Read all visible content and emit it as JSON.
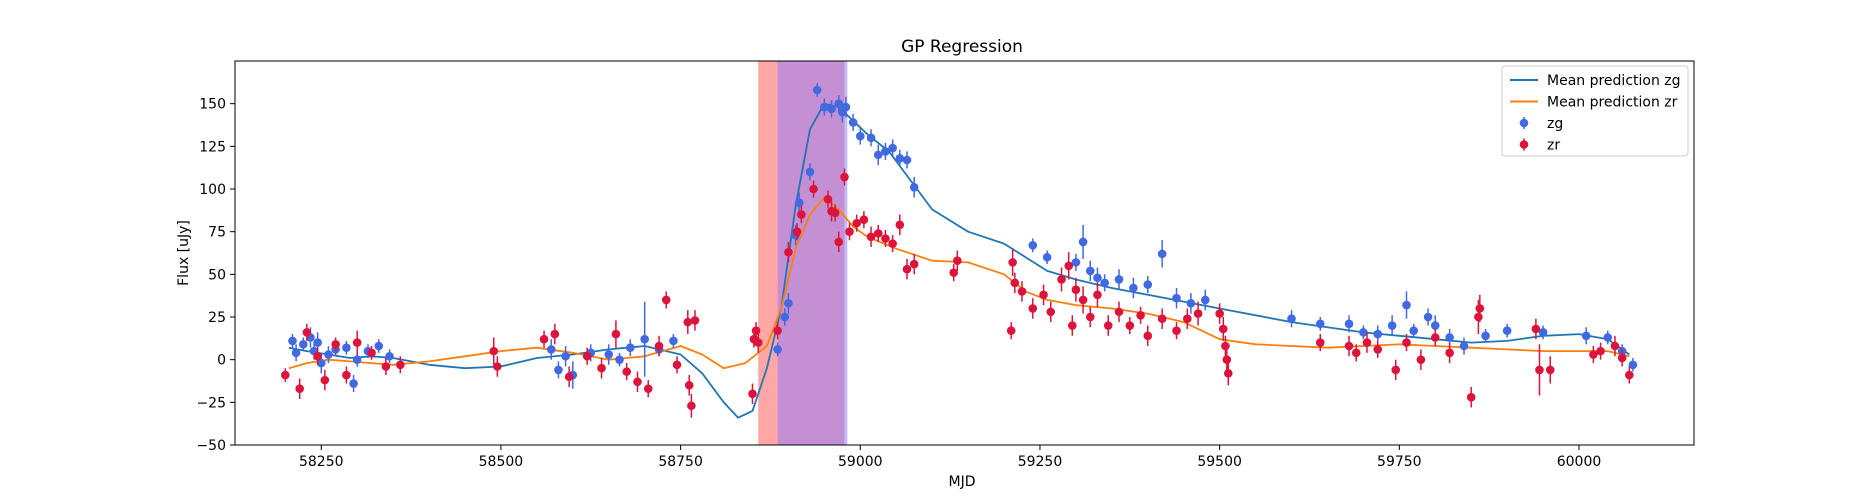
{
  "chart_data": {
    "type": "scatter",
    "title": "GP Regression",
    "xlabel": "MJD",
    "ylabel": "Flux [uJy]",
    "xlim": [
      58130,
      60160
    ],
    "ylim": [
      -50,
      175
    ],
    "xticks": [
      58250,
      58500,
      58750,
      59000,
      59250,
      59500,
      59750,
      60000
    ],
    "yticks": [
      -50,
      -25,
      0,
      25,
      50,
      75,
      100,
      125,
      150
    ],
    "grid": false,
    "legend_position": "top-right",
    "legend": [
      {
        "label": "Mean prediction zg",
        "kind": "line",
        "color": "#1f77b4"
      },
      {
        "label": "Mean prediction zr",
        "kind": "line",
        "color": "#ff7f0e"
      },
      {
        "label": "zg",
        "kind": "errorbar",
        "color": "#4169e1"
      },
      {
        "label": "zr",
        "kind": "errorbar",
        "color": "#dc143c"
      }
    ],
    "shaded_regions": [
      {
        "x0": 58858,
        "x1": 58978,
        "color": "#ff8080",
        "opacity": 0.7
      },
      {
        "x0": 58885,
        "x1": 58982,
        "color": "#8a78ff",
        "opacity": 0.5
      }
    ],
    "series": [
      {
        "name": "Mean prediction zg",
        "kind": "line",
        "color": "#1f77b4",
        "x": [
          58205,
          58230,
          58260,
          58290,
          58320,
          58350,
          58400,
          58450,
          58500,
          58550,
          58600,
          58650,
          58700,
          58750,
          58780,
          58810,
          58830,
          58850,
          58870,
          58890,
          58910,
          58930,
          58950,
          58970,
          58990,
          59010,
          59040,
          59070,
          59100,
          59150,
          59200,
          59230,
          59260,
          59300,
          59350,
          59400,
          59450,
          59500,
          59600,
          59700,
          59800,
          59850,
          59900,
          59950,
          60000,
          60040,
          60070
        ],
        "y": [
          7,
          5,
          3,
          1,
          2,
          1,
          -3,
          -5,
          -4,
          1,
          3,
          6,
          8,
          3,
          -8,
          -25,
          -34,
          -30,
          -5,
          30,
          90,
          135,
          150,
          148,
          140,
          132,
          122,
          105,
          88,
          75,
          68,
          60,
          52,
          47,
          42,
          38,
          34,
          30,
          22,
          16,
          12,
          10,
          11,
          14,
          15,
          12,
          3
        ]
      },
      {
        "name": "Mean prediction zr",
        "kind": "line",
        "color": "#ff7f0e",
        "x": [
          58205,
          58230,
          58260,
          58290,
          58320,
          58350,
          58400,
          58450,
          58500,
          58550,
          58600,
          58650,
          58700,
          58750,
          58780,
          58810,
          58840,
          58870,
          58890,
          58910,
          58930,
          58950,
          58970,
          58990,
          59010,
          59050,
          59100,
          59150,
          59200,
          59230,
          59260,
          59300,
          59350,
          59400,
          59450,
          59500,
          59550,
          59600,
          59650,
          59700,
          59750,
          59800,
          59850,
          59900,
          59950,
          60000,
          60040,
          60070
        ],
        "y": [
          -5,
          -2,
          0,
          -1,
          -2,
          -3,
          -1,
          2,
          5,
          7,
          4,
          0,
          2,
          8,
          3,
          -5,
          -2,
          8,
          30,
          65,
          85,
          95,
          88,
          78,
          72,
          65,
          58,
          57,
          50,
          40,
          35,
          32,
          30,
          27,
          22,
          12,
          9,
          8,
          7,
          8,
          9,
          8,
          7,
          6,
          5,
          5,
          5,
          2
        ]
      },
      {
        "name": "zg",
        "kind": "errorbar",
        "color": "#4169e1",
        "points": [
          [
            58210,
            11,
            4
          ],
          [
            58215,
            4,
            5
          ],
          [
            58225,
            9,
            4
          ],
          [
            58235,
            13,
            6
          ],
          [
            58240,
            5,
            5
          ],
          [
            58245,
            10,
            6
          ],
          [
            58250,
            -2,
            6
          ],
          [
            58260,
            3,
            5
          ],
          [
            58270,
            6,
            4
          ],
          [
            58285,
            7,
            4
          ],
          [
            58295,
            -14,
            5
          ],
          [
            58300,
            0,
            4
          ],
          [
            58315,
            5,
            4
          ],
          [
            58330,
            8,
            4
          ],
          [
            58345,
            2,
            4
          ],
          [
            58570,
            6,
            6
          ],
          [
            58580,
            -6,
            5
          ],
          [
            58590,
            2,
            6
          ],
          [
            58600,
            -9,
            8
          ],
          [
            58625,
            4,
            5
          ],
          [
            58650,
            3,
            6
          ],
          [
            58665,
            0,
            4
          ],
          [
            58680,
            7,
            5
          ],
          [
            58700,
            12,
            22
          ],
          [
            58720,
            6,
            4
          ],
          [
            58740,
            11,
            4
          ],
          [
            58885,
            6,
            4
          ],
          [
            58895,
            25,
            5
          ],
          [
            58900,
            33,
            6
          ],
          [
            58910,
            73,
            6
          ],
          [
            58915,
            92,
            6
          ],
          [
            58930,
            110,
            5
          ],
          [
            58940,
            158,
            4
          ],
          [
            58950,
            148,
            5
          ],
          [
            58960,
            147,
            5
          ],
          [
            58970,
            150,
            5
          ],
          [
            58975,
            145,
            6
          ],
          [
            58980,
            148,
            6
          ],
          [
            58990,
            139,
            5
          ],
          [
            59000,
            131,
            5
          ],
          [
            59015,
            130,
            5
          ],
          [
            59025,
            120,
            6
          ],
          [
            59035,
            122,
            5
          ],
          [
            59045,
            124,
            5
          ],
          [
            59055,
            118,
            5
          ],
          [
            59065,
            117,
            5
          ],
          [
            59075,
            101,
            6
          ],
          [
            59240,
            67,
            4
          ],
          [
            59260,
            60,
            4
          ],
          [
            59300,
            57,
            5
          ],
          [
            59310,
            69,
            10
          ],
          [
            59320,
            52,
            6
          ],
          [
            59330,
            48,
            6
          ],
          [
            59340,
            45,
            5
          ],
          [
            59360,
            47,
            6
          ],
          [
            59380,
            42,
            6
          ],
          [
            59400,
            44,
            5
          ],
          [
            59420,
            62,
            8
          ],
          [
            59440,
            36,
            6
          ],
          [
            59460,
            33,
            6
          ],
          [
            59480,
            35,
            6
          ],
          [
            59600,
            24,
            5
          ],
          [
            59640,
            21,
            4
          ],
          [
            59680,
            21,
            5
          ],
          [
            59700,
            16,
            4
          ],
          [
            59720,
            15,
            5
          ],
          [
            59740,
            20,
            6
          ],
          [
            59760,
            32,
            8
          ],
          [
            59770,
            17,
            4
          ],
          [
            59790,
            25,
            5
          ],
          [
            59800,
            20,
            6
          ],
          [
            59820,
            13,
            5
          ],
          [
            59840,
            8,
            5
          ],
          [
            59870,
            14,
            4
          ],
          [
            59900,
            17,
            4
          ],
          [
            59950,
            16,
            4
          ],
          [
            60010,
            14,
            5
          ],
          [
            60040,
            13,
            4
          ],
          [
            60060,
            5,
            4
          ],
          [
            60075,
            -3,
            4
          ]
        ]
      },
      {
        "name": "zr",
        "kind": "errorbar",
        "color": "#dc143c",
        "points": [
          [
            58200,
            -9,
            4
          ],
          [
            58220,
            -17,
            6
          ],
          [
            58230,
            16,
            5
          ],
          [
            58245,
            2,
            5
          ],
          [
            58255,
            -12,
            6
          ],
          [
            58270,
            9,
            4
          ],
          [
            58285,
            -9,
            5
          ],
          [
            58300,
            10,
            7
          ],
          [
            58320,
            4,
            4
          ],
          [
            58340,
            -4,
            5
          ],
          [
            58360,
            -3,
            5
          ],
          [
            58490,
            5,
            8
          ],
          [
            58495,
            -4,
            6
          ],
          [
            58560,
            12,
            5
          ],
          [
            58575,
            15,
            6
          ],
          [
            58595,
            -10,
            6
          ],
          [
            58620,
            2,
            5
          ],
          [
            58640,
            -5,
            6
          ],
          [
            58660,
            15,
            8
          ],
          [
            58675,
            -7,
            5
          ],
          [
            58690,
            -13,
            6
          ],
          [
            58705,
            -17,
            5
          ],
          [
            58720,
            8,
            6
          ],
          [
            58730,
            35,
            5
          ],
          [
            58745,
            -3,
            5
          ],
          [
            58760,
            22,
            7
          ],
          [
            58762,
            -15,
            6
          ],
          [
            58765,
            -27,
            7
          ],
          [
            58770,
            23,
            6
          ],
          [
            58850,
            -20,
            6
          ],
          [
            58852,
            12,
            5
          ],
          [
            58855,
            17,
            5
          ],
          [
            58858,
            10,
            6
          ],
          [
            58885,
            17,
            5
          ],
          [
            58900,
            63,
            6
          ],
          [
            58912,
            75,
            5
          ],
          [
            58918,
            85,
            5
          ],
          [
            58935,
            100,
            5
          ],
          [
            58955,
            94,
            5
          ],
          [
            58960,
            87,
            6
          ],
          [
            58965,
            86,
            5
          ],
          [
            58970,
            69,
            6
          ],
          [
            58978,
            107,
            5
          ],
          [
            58985,
            75,
            5
          ],
          [
            58995,
            80,
            5
          ],
          [
            59005,
            82,
            5
          ],
          [
            59015,
            72,
            6
          ],
          [
            59025,
            74,
            5
          ],
          [
            59035,
            71,
            5
          ],
          [
            59045,
            68,
            5
          ],
          [
            59055,
            79,
            6
          ],
          [
            59065,
            53,
            6
          ],
          [
            59075,
            56,
            6
          ],
          [
            59130,
            51,
            5
          ],
          [
            59135,
            58,
            6
          ],
          [
            59210,
            17,
            5
          ],
          [
            59212,
            57,
            8
          ],
          [
            59215,
            45,
            6
          ],
          [
            59225,
            40,
            6
          ],
          [
            59240,
            30,
            6
          ],
          [
            59255,
            38,
            6
          ],
          [
            59265,
            28,
            6
          ],
          [
            59280,
            47,
            7
          ],
          [
            59290,
            55,
            8
          ],
          [
            59295,
            20,
            6
          ],
          [
            59300,
            41,
            7
          ],
          [
            59310,
            35,
            8
          ],
          [
            59320,
            25,
            6
          ],
          [
            59330,
            38,
            7
          ],
          [
            59345,
            20,
            6
          ],
          [
            59360,
            28,
            6
          ],
          [
            59375,
            20,
            5
          ],
          [
            59390,
            26,
            5
          ],
          [
            59400,
            14,
            6
          ],
          [
            59420,
            24,
            6
          ],
          [
            59440,
            17,
            5
          ],
          [
            59455,
            24,
            6
          ],
          [
            59470,
            27,
            7
          ],
          [
            59500,
            27,
            6
          ],
          [
            59505,
            18,
            7
          ],
          [
            59508,
            8,
            6
          ],
          [
            59510,
            0,
            6
          ],
          [
            59512,
            -8,
            7
          ],
          [
            59640,
            10,
            5
          ],
          [
            59680,
            8,
            6
          ],
          [
            59690,
            4,
            5
          ],
          [
            59705,
            10,
            6
          ],
          [
            59720,
            6,
            5
          ],
          [
            59745,
            -6,
            6
          ],
          [
            59760,
            10,
            5
          ],
          [
            59780,
            0,
            6
          ],
          [
            59800,
            13,
            5
          ],
          [
            59820,
            4,
            6
          ],
          [
            59850,
            -22,
            6
          ],
          [
            59860,
            25,
            10
          ],
          [
            59862,
            30,
            8
          ],
          [
            59940,
            18,
            6
          ],
          [
            59945,
            -6,
            15
          ],
          [
            59960,
            -6,
            8
          ],
          [
            60020,
            3,
            5
          ],
          [
            60030,
            5,
            5
          ],
          [
            60050,
            8,
            6
          ],
          [
            60060,
            1,
            5
          ],
          [
            60070,
            -9,
            5
          ]
        ]
      }
    ]
  }
}
